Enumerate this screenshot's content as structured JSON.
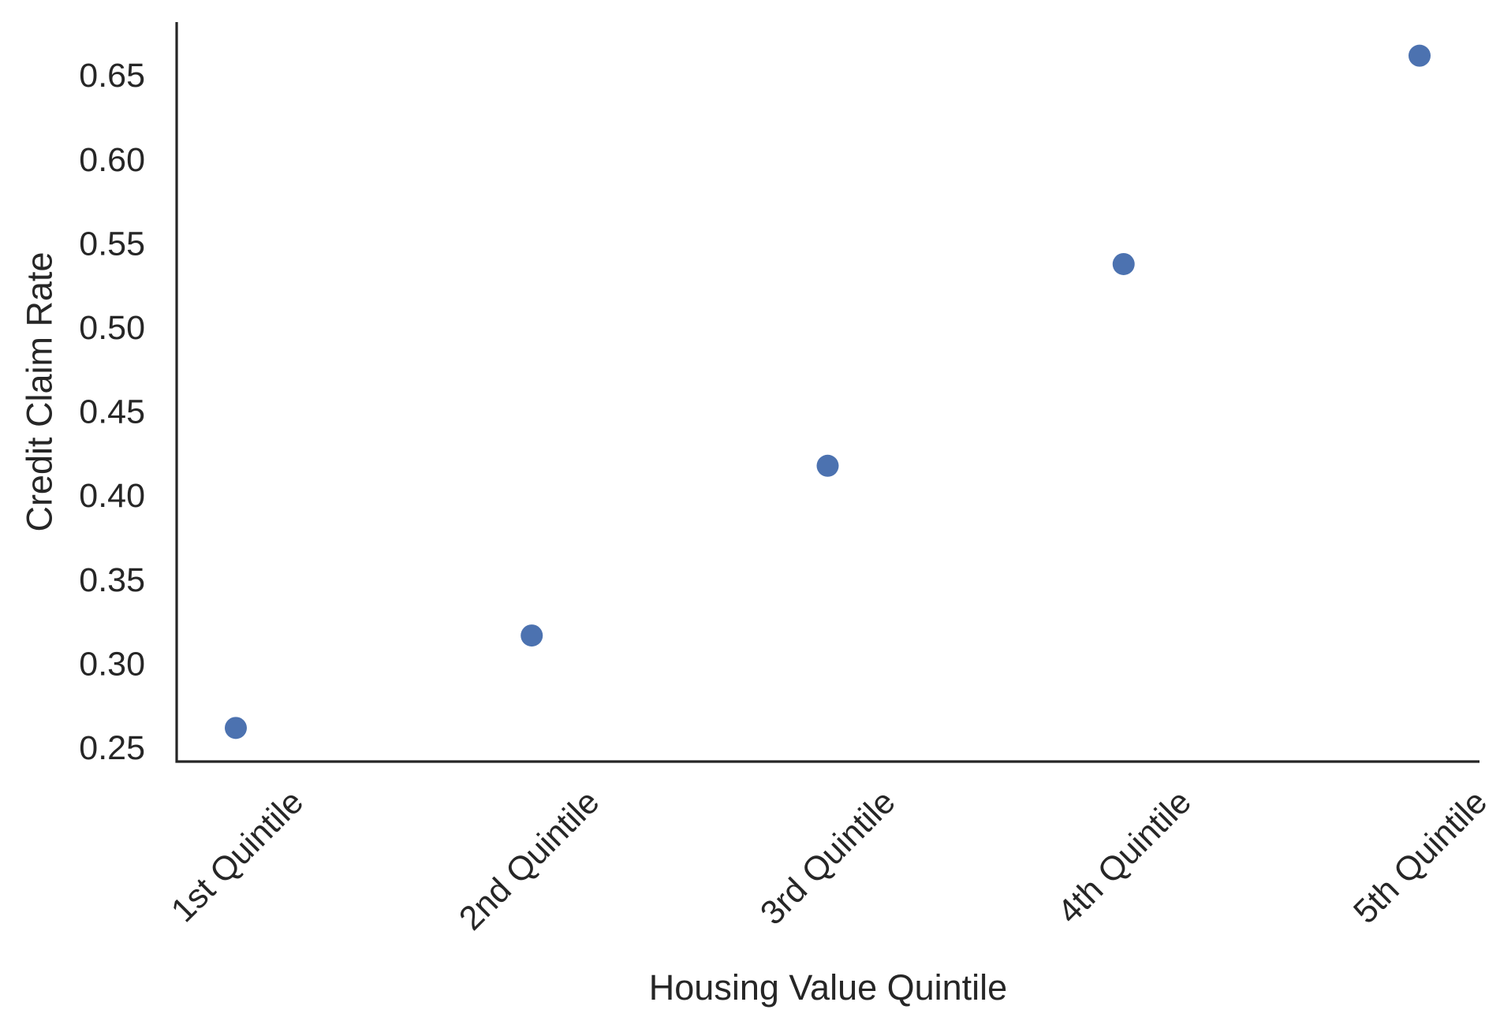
{
  "chart_data": {
    "type": "scatter",
    "title": "",
    "xlabel": "Housing Value Quintile",
    "ylabel": "Credit Claim Rate",
    "categories": [
      "1st Quintile",
      "2nd Quintile",
      "3rd Quintile",
      "4th Quintile",
      "5th Quintile"
    ],
    "values": [
      0.262,
      0.317,
      0.418,
      0.538,
      0.662
    ],
    "yticks": [
      0.25,
      0.3,
      0.35,
      0.4,
      0.45,
      0.5,
      0.55,
      0.6,
      0.65
    ],
    "ytick_labels": [
      "0.25",
      "0.30",
      "0.35",
      "0.40",
      "0.45",
      "0.50",
      "0.55",
      "0.60",
      "0.65"
    ],
    "ylim": [
      0.242,
      0.682
    ],
    "grid": false,
    "legend": "none",
    "marker_color": "#4C72B0",
    "axis_color": "#262626",
    "xtick_rotation_deg": -45
  }
}
